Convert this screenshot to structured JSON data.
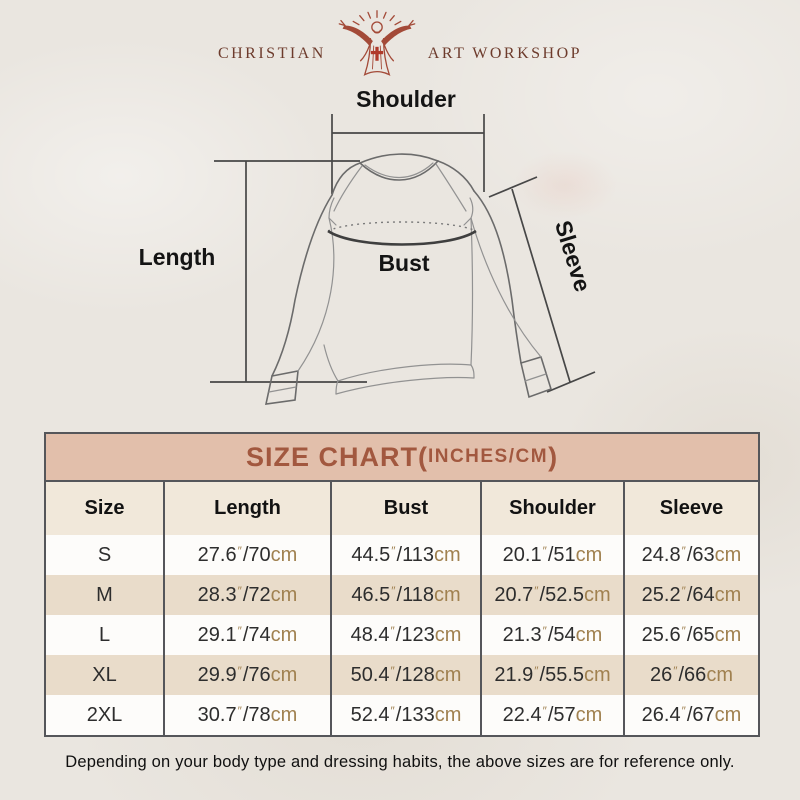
{
  "logo": {
    "left_text": "CHRISTIAN",
    "right_text": "ART WORKSHOP",
    "figure_icon": "jesus-rays-icon",
    "brand_color": "#6d3b2c",
    "icon_color": "#a34a38"
  },
  "diagram": {
    "labels": {
      "shoulder": "Shoulder",
      "length": "Length",
      "bust": "Bust",
      "sleeve": "Sleeve"
    }
  },
  "size_chart": {
    "title": {
      "main": "SIZE CHART",
      "paren_open": "(",
      "units": "INCHES/CM",
      "paren_close": ")"
    },
    "title_bg": "#e2bfab",
    "title_color": "#a2583f",
    "header_bg": "#f1e8da",
    "stripe_bg": "#e9dcca",
    "unit_color": "#a08150",
    "columns": [
      "Size",
      "Length",
      "Bust",
      "Shoulder",
      "Sleeve"
    ],
    "unit_inch": "″",
    "unit_cm": "cm",
    "separator": "/",
    "rows": [
      {
        "size": "S",
        "length": {
          "in": "27.6",
          "cm": "70"
        },
        "bust": {
          "in": "44.5",
          "cm": "113"
        },
        "shoulder": {
          "in": "20.1",
          "cm": "51"
        },
        "sleeve": {
          "in": "24.8",
          "cm": "63"
        }
      },
      {
        "size": "M",
        "length": {
          "in": "28.3",
          "cm": "72"
        },
        "bust": {
          "in": "46.5",
          "cm": "118"
        },
        "shoulder": {
          "in": "20.7",
          "cm": "52.5"
        },
        "sleeve": {
          "in": "25.2",
          "cm": "64"
        }
      },
      {
        "size": "L",
        "length": {
          "in": "29.1",
          "cm": "74"
        },
        "bust": {
          "in": "48.4",
          "cm": "123"
        },
        "shoulder": {
          "in": "21.3",
          "cm": "54"
        },
        "sleeve": {
          "in": "25.6",
          "cm": "65"
        }
      },
      {
        "size": "XL",
        "length": {
          "in": "29.9",
          "cm": "76"
        },
        "bust": {
          "in": "50.4",
          "cm": "128"
        },
        "shoulder": {
          "in": "21.9",
          "cm": "55.5"
        },
        "sleeve": {
          "in": "26",
          "cm": "66"
        }
      },
      {
        "size": "2XL",
        "length": {
          "in": "30.7",
          "cm": "78"
        },
        "bust": {
          "in": "52.4",
          "cm": "133"
        },
        "shoulder": {
          "in": "22.4",
          "cm": "57"
        },
        "sleeve": {
          "in": "26.4",
          "cm": "67"
        }
      }
    ]
  },
  "footer": {
    "note": "Depending on your body type and dressing habits, the above sizes are for reference only."
  }
}
